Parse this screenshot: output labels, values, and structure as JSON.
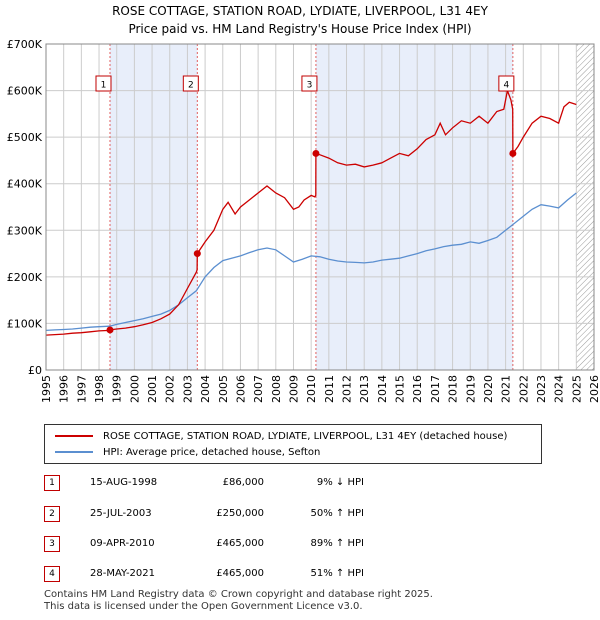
{
  "title_line1": "ROSE COTTAGE, STATION ROAD, LYDIATE, LIVERPOOL, L31 4EY",
  "title_line2": "Price paid vs. HM Land Registry's House Price Index (HPI)",
  "colors": {
    "property": "#cc0000",
    "hpi": "#5b8fd0",
    "shade": "#e8eefa",
    "grid": "#cccccc"
  },
  "legend": {
    "property": "ROSE COTTAGE, STATION ROAD, LYDIATE, LIVERPOOL, L31 4EY (detached house)",
    "hpi": "HPI: Average price, detached house, Sefton"
  },
  "transactions": [
    {
      "num": "1",
      "date": "15-AUG-1998",
      "price": "£86,000",
      "hpi": "9% ↓ HPI"
    },
    {
      "num": "2",
      "date": "25-JUL-2003",
      "price": "£250,000",
      "hpi": "50% ↑ HPI"
    },
    {
      "num": "3",
      "date": "09-APR-2010",
      "price": "£465,000",
      "hpi": "89% ↑ HPI"
    },
    {
      "num": "4",
      "date": "28-MAY-2021",
      "price": "£465,000",
      "hpi": "51% ↑ HPI"
    }
  ],
  "footer_line1": "Contains HM Land Registry data © Crown copyright and database right 2025.",
  "footer_line2": "This data is licensed under the Open Government Licence v3.0.",
  "chart_data": {
    "type": "line",
    "title": "",
    "xlabel": "",
    "ylabel": "",
    "xlim": [
      1995,
      2026
    ],
    "ylim": [
      0,
      700000
    ],
    "y_ticks": [
      0,
      100000,
      200000,
      300000,
      400000,
      500000,
      600000,
      700000
    ],
    "y_tick_labels": [
      "£0",
      "£100K",
      "£200K",
      "£300K",
      "£400K",
      "£500K",
      "£600K",
      "£700K"
    ],
    "x_ticks": [
      "1995",
      "1996",
      "1997",
      "1998",
      "1999",
      "2000",
      "2001",
      "2002",
      "2003",
      "2004",
      "2005",
      "2006",
      "2007",
      "2008",
      "2009",
      "2010",
      "2011",
      "2012",
      "2013",
      "2014",
      "2015",
      "2016",
      "2017",
      "2018",
      "2019",
      "2020",
      "2021",
      "2022",
      "2023",
      "2024",
      "2025",
      "2026"
    ],
    "grid": true,
    "legend_position": "below",
    "shaded_spans": [
      [
        1998.62,
        2003.56
      ],
      [
        2010.27,
        2021.41
      ]
    ],
    "hatched_from": 2025.0,
    "sales": [
      {
        "label": "1",
        "x": 1998.62,
        "y": 86000
      },
      {
        "label": "2",
        "x": 2003.56,
        "y": 250000
      },
      {
        "label": "3",
        "x": 2010.27,
        "y": 465000
      },
      {
        "label": "4",
        "x": 2021.41,
        "y": 465000
      }
    ],
    "series": [
      {
        "name": "ROSE COTTAGE, STATION ROAD, LYDIATE, LIVERPOOL, L31 4EY (detached house)",
        "x": [
          1995,
          1995.5,
          1996,
          1996.5,
          1997,
          1997.5,
          1998,
          1998.6,
          1998.62,
          1999,
          1999.5,
          2000,
          2000.5,
          2001,
          2001.5,
          2002,
          2002.5,
          2003,
          2003.5,
          2003.55,
          2003.56,
          2004,
          2004.5,
          2005,
          2005.3,
          2005.7,
          2006,
          2006.5,
          2007,
          2007.5,
          2008,
          2008.5,
          2009,
          2009.3,
          2009.6,
          2010,
          2010.2,
          2010.26,
          2010.27,
          2010.5,
          2011,
          2011.5,
          2012,
          2012.5,
          2013,
          2013.5,
          2014,
          2014.5,
          2015,
          2015.5,
          2016,
          2016.5,
          2017,
          2017.3,
          2017.6,
          2018,
          2018.5,
          2019,
          2019.5,
          2020,
          2020.5,
          2020.9,
          2021.1,
          2021.3,
          2021.4,
          2021.41,
          2021.7,
          2022,
          2022.5,
          2023,
          2023.5,
          2024,
          2024.3,
          2024.6,
          2025
        ],
        "y": [
          75000,
          76000,
          77000,
          79000,
          80000,
          82000,
          84000,
          85000,
          86000,
          88000,
          90000,
          93000,
          97000,
          102000,
          110000,
          120000,
          140000,
          175000,
          210000,
          215000,
          250000,
          275000,
          300000,
          345000,
          360000,
          335000,
          350000,
          365000,
          380000,
          395000,
          380000,
          370000,
          345000,
          350000,
          365000,
          375000,
          372000,
          375000,
          465000,
          462000,
          455000,
          445000,
          440000,
          442000,
          436000,
          440000,
          445000,
          455000,
          465000,
          460000,
          475000,
          495000,
          505000,
          530000,
          505000,
          520000,
          535000,
          530000,
          545000,
          530000,
          555000,
          560000,
          600000,
          580000,
          560000,
          465000,
          480000,
          500000,
          530000,
          545000,
          540000,
          530000,
          565000,
          575000,
          570000
        ]
      },
      {
        "name": "HPI: Average price, detached house, Sefton",
        "x": [
          1995,
          1995.5,
          1996,
          1996.5,
          1997,
          1997.5,
          1998,
          1998.6,
          1999,
          1999.5,
          2000,
          2000.5,
          2001,
          2001.5,
          2002,
          2002.5,
          2003,
          2003.5,
          2004,
          2004.5,
          2005,
          2005.5,
          2006,
          2006.5,
          2007,
          2007.5,
          2008,
          2008.5,
          2009,
          2009.5,
          2010,
          2010.5,
          2011,
          2011.5,
          2012,
          2012.5,
          2013,
          2013.5,
          2014,
          2014.5,
          2015,
          2015.5,
          2016,
          2016.5,
          2017,
          2017.5,
          2018,
          2018.5,
          2019,
          2019.5,
          2020,
          2020.5,
          2021,
          2021.5,
          2022,
          2022.5,
          2023,
          2023.5,
          2024,
          2024.5,
          2025
        ],
        "y": [
          85000,
          86000,
          87000,
          88000,
          90000,
          92000,
          93000,
          94000,
          98000,
          102000,
          106000,
          110000,
          115000,
          120000,
          128000,
          140000,
          155000,
          170000,
          200000,
          220000,
          235000,
          240000,
          245000,
          252000,
          258000,
          262000,
          258000,
          245000,
          232000,
          238000,
          245000,
          243000,
          238000,
          234000,
          232000,
          231000,
          230000,
          232000,
          236000,
          238000,
          240000,
          245000,
          250000,
          256000,
          260000,
          265000,
          268000,
          270000,
          275000,
          272000,
          278000,
          285000,
          300000,
          315000,
          330000,
          345000,
          355000,
          352000,
          348000,
          365000,
          380000
        ]
      }
    ]
  }
}
